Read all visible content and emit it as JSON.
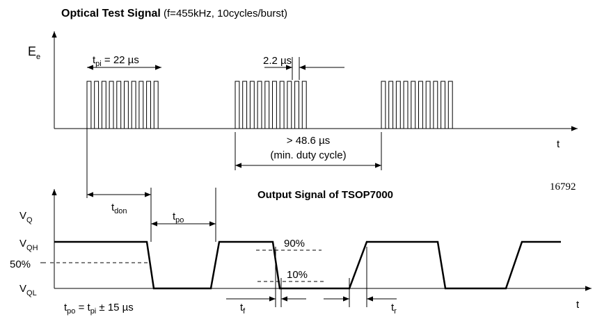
{
  "top": {
    "title": "Optical Test Signal",
    "subtitle": "(f=455kHz, 10cycles/burst)",
    "y_axis": {
      "main": "E",
      "sub": "e"
    },
    "tpi": {
      "main": "t",
      "sub": "pi",
      "rest": " = 22 µs"
    },
    "period": "2.2 µs",
    "gap": "> 48.6 µs",
    "gap_note": "(min. duty cycle)",
    "x_axis": "t",
    "figure_id": "16792"
  },
  "bottom": {
    "title": "Output Signal of TSOP7000",
    "y_axis": {
      "main": "V",
      "sub": "Q"
    },
    "vqh": {
      "main": "V",
      "sub": "QH"
    },
    "mid": "50%",
    "vql": {
      "main": "V",
      "sub": "QL"
    },
    "tdon": {
      "main": "t",
      "sub": "don"
    },
    "tpo": {
      "main": "t",
      "sub": "po"
    },
    "p90": "90%",
    "p10": "10%",
    "tf": {
      "main": "t",
      "sub": "f"
    },
    "tr": {
      "main": "t",
      "sub": "r"
    },
    "formula": {
      "t1": "t",
      "s1": "po",
      "eq": " = t",
      "s2": "pi",
      "rest": " ± 15 µs"
    },
    "x_axis": "t"
  }
}
